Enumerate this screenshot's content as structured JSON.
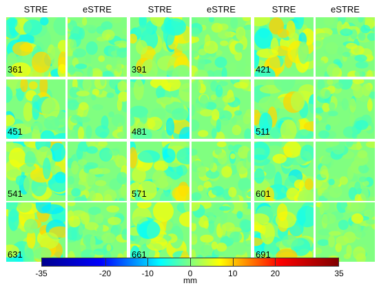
{
  "headers": [
    "STRE",
    "eSTRE",
    "STRE",
    "eSTRE",
    "STRE",
    "eSTRE"
  ],
  "tile_labels": [
    "361",
    "391",
    "421",
    "451",
    "481",
    "511",
    "541",
    "571",
    "601",
    "631",
    "661",
    "691"
  ],
  "colorbar": {
    "ticks": [
      "-35",
      "-20",
      "-10",
      "0",
      "10",
      "20",
      "35"
    ],
    "unit": "mm",
    "range": [
      -35,
      35
    ],
    "colormap": "jet",
    "colors": [
      "#00008f",
      "#0000ff",
      "#00ffff",
      "#ffff00",
      "#ff0000",
      "#800000"
    ]
  }
}
